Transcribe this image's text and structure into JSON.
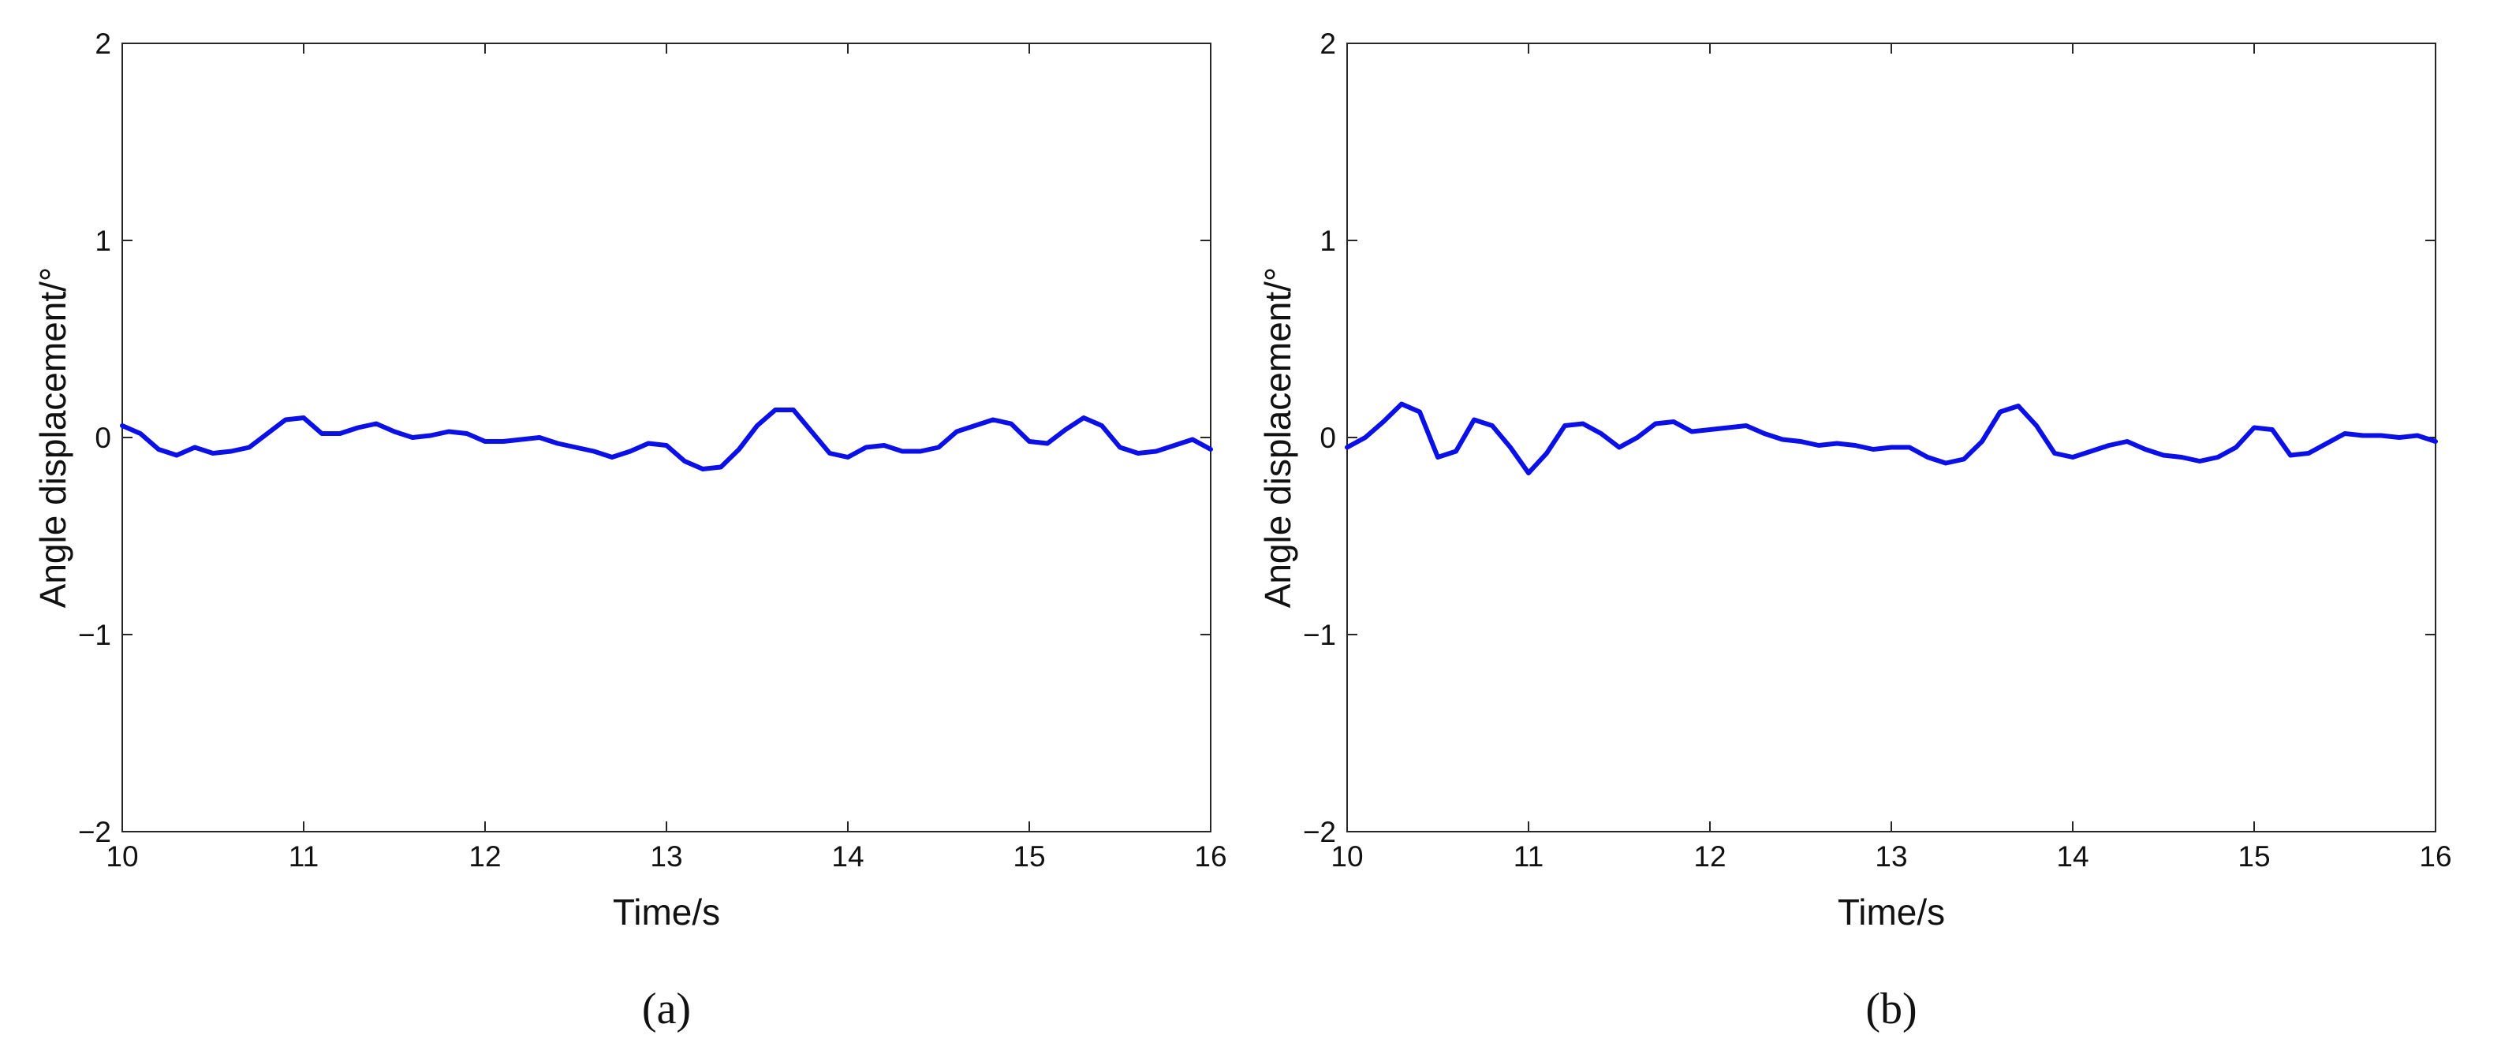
{
  "colors": {
    "line": "#0a10e6",
    "axes": "#262626"
  },
  "chart_data": [
    {
      "type": "line",
      "panel_label": "(a)",
      "xlabel": "Time/s",
      "ylabel": "Angle displacement/°",
      "xlim": [
        10,
        16
      ],
      "ylim": [
        -2,
        2
      ],
      "xticks": [
        "10",
        "11",
        "12",
        "13",
        "14",
        "15",
        "16"
      ],
      "yticks": [
        "−2",
        "−1",
        "0",
        "1",
        "2"
      ],
      "grid": false,
      "series": [
        {
          "x": [
            10.0,
            10.1,
            10.2,
            10.3,
            10.4,
            10.5,
            10.6,
            10.7,
            10.8,
            10.9,
            11.0,
            11.1,
            11.2,
            11.3,
            11.4,
            11.5,
            11.6,
            11.7,
            11.8,
            11.9,
            12.0,
            12.1,
            12.2,
            12.3,
            12.4,
            12.5,
            12.6,
            12.7,
            12.8,
            12.9,
            13.0,
            13.1,
            13.2,
            13.3,
            13.4,
            13.5,
            13.6,
            13.7,
            13.8,
            13.9,
            14.0,
            14.1,
            14.2,
            14.3,
            14.4,
            14.5,
            14.6,
            14.7,
            14.8,
            14.9,
            15.0,
            15.1,
            15.2,
            15.3,
            15.4,
            15.5,
            15.6,
            15.7,
            15.8,
            15.9,
            16.0
          ],
          "y": [
            0.06,
            0.02,
            -0.06,
            -0.09,
            -0.05,
            -0.08,
            -0.07,
            -0.05,
            0.02,
            0.09,
            0.1,
            0.02,
            0.02,
            0.05,
            0.07,
            0.03,
            0.0,
            0.01,
            0.03,
            0.02,
            -0.02,
            -0.02,
            -0.01,
            0.0,
            -0.03,
            -0.05,
            -0.07,
            -0.1,
            -0.07,
            -0.03,
            -0.04,
            -0.12,
            -0.16,
            -0.15,
            -0.06,
            0.06,
            0.14,
            0.14,
            0.03,
            -0.08,
            -0.1,
            -0.05,
            -0.04,
            -0.07,
            -0.07,
            -0.05,
            0.03,
            0.06,
            0.09,
            0.07,
            -0.02,
            -0.03,
            0.04,
            0.1,
            0.06,
            -0.05,
            -0.08,
            -0.07,
            -0.04,
            -0.01,
            -0.06
          ]
        }
      ]
    },
    {
      "type": "line",
      "panel_label": "(b)",
      "xlabel": "Time/s",
      "ylabel": "Angle displacement/°",
      "xlim": [
        10,
        16
      ],
      "ylim": [
        -2,
        2
      ],
      "xticks": [
        "10",
        "11",
        "12",
        "13",
        "14",
        "15",
        "16"
      ],
      "yticks": [
        "−2",
        "−1",
        "0",
        "1",
        "2"
      ],
      "grid": false,
      "series": [
        {
          "x": [
            10.0,
            10.1,
            10.2,
            10.3,
            10.4,
            10.5,
            10.6,
            10.7,
            10.8,
            10.9,
            11.0,
            11.1,
            11.2,
            11.3,
            11.4,
            11.5,
            11.6,
            11.7,
            11.8,
            11.9,
            12.0,
            12.1,
            12.2,
            12.3,
            12.4,
            12.5,
            12.6,
            12.7,
            12.8,
            12.9,
            13.0,
            13.1,
            13.2,
            13.3,
            13.4,
            13.5,
            13.6,
            13.7,
            13.8,
            13.9,
            14.0,
            14.1,
            14.2,
            14.3,
            14.4,
            14.5,
            14.6,
            14.7,
            14.8,
            14.9,
            15.0,
            15.1,
            15.2,
            15.3,
            15.4,
            15.5,
            15.6,
            15.7,
            15.8,
            15.9,
            16.0
          ],
          "y": [
            -0.05,
            0.0,
            0.08,
            0.17,
            0.13,
            -0.1,
            -0.07,
            0.09,
            0.06,
            -0.05,
            -0.18,
            -0.08,
            0.06,
            0.07,
            0.02,
            -0.05,
            0.0,
            0.07,
            0.08,
            0.03,
            0.04,
            0.05,
            0.06,
            0.02,
            -0.01,
            -0.02,
            -0.04,
            -0.03,
            -0.04,
            -0.06,
            -0.05,
            -0.05,
            -0.1,
            -0.13,
            -0.11,
            -0.02,
            0.13,
            0.16,
            0.06,
            -0.08,
            -0.1,
            -0.07,
            -0.04,
            -0.02,
            -0.06,
            -0.09,
            -0.1,
            -0.12,
            -0.1,
            -0.05,
            0.05,
            0.04,
            -0.09,
            -0.08,
            -0.03,
            0.02,
            0.01,
            0.01,
            0.0,
            0.01,
            -0.02
          ]
        }
      ]
    }
  ]
}
